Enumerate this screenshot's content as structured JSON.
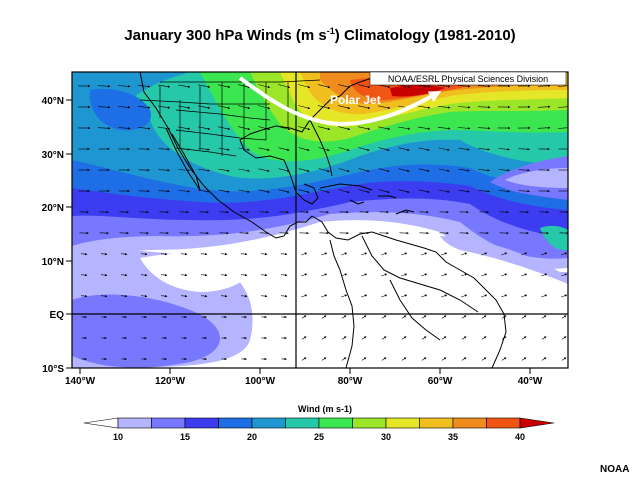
{
  "title_main": "January 300 hPa Winds (m s",
  "title_sup": "-1",
  "title_tail": ") Climatology (1981-2010)",
  "attribution": "NOAA/ESRL Physical Sciences Division",
  "annotation": "Polar Jet",
  "lat_labels": [
    "40°N",
    "30°N",
    "20°N",
    "10°N",
    "EQ",
    "10°S"
  ],
  "lon_labels": [
    "140°W",
    "120°W",
    "100°W",
    "80°W",
    "60°W",
    "40°W"
  ],
  "colorbar": {
    "title": "Wind (m s-1)",
    "tick_labels": [
      "10",
      "15",
      "20",
      "25",
      "30",
      "35",
      "40"
    ],
    "colors": [
      "#ffffff",
      "#b4b4ff",
      "#7878ff",
      "#3c3cf0",
      "#1e6ee6",
      "#1e96d2",
      "#26c8aa",
      "#3ce650",
      "#9be628",
      "#e6e628",
      "#f0be1e",
      "#f08c1e",
      "#f05514",
      "#c80000"
    ]
  },
  "credit": "NOAA",
  "colors": {
    "land_outline": "#000000",
    "ocean_calm": "#ffffff",
    "jet_core": "#c80000"
  }
}
